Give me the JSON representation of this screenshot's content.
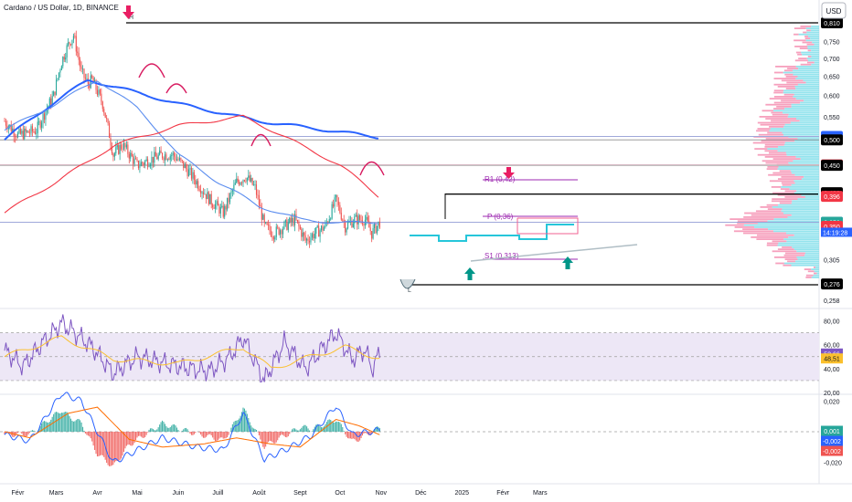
{
  "header": {
    "symbol_title": "Cardano / US Dollar, 1D, BINANCE",
    "currency": "USD"
  },
  "colors": {
    "candle_up": "#26a69a",
    "candle_down": "#ef5350",
    "ma_fast": "#2962ff",
    "ma_mid": "#5b8def",
    "ma_slow": "#f23645",
    "level_line": "#000000",
    "teal_pivot": "#26c6da",
    "pivot_pink": "#d81b60",
    "arrow_red": "#e91e63",
    "arrow_teal": "#009688",
    "rsi_line": "#7e57c2",
    "rsi_ma": "#fbc02d",
    "rsi_band_fill": "#ede7f6",
    "macd_line": "#2962ff",
    "signal_line": "#ff6d00",
    "vp_teal": "#80deea",
    "vp_pink": "#f48fb1"
  },
  "chart_data": [
    {
      "type": "candlestick",
      "title": "Cardano / US Dollar, 1D, BINANCE",
      "x_labels": [
        "Févr",
        "Mars",
        "Avr",
        "Mai",
        "Juin",
        "Juill",
        "Août",
        "Sept",
        "Oct",
        "Nov",
        "Déc",
        "2025",
        "Févr",
        "Mars"
      ],
      "y_axis_ticks": [
        "0,750",
        "0,700",
        "0,650",
        "0,600",
        "0,550",
        "0,500",
        "0,450",
        "0,400",
        "0,350",
        "0,305",
        "0,258"
      ],
      "ylim": [
        0.258,
        0.81
      ],
      "scale": "log",
      "price_levels": [
        0.81,
        0.507,
        0.5,
        0.451,
        0.45,
        0.402,
        0.396,
        0.356,
        0.356,
        0.35,
        0.276
      ],
      "price_level_labels": [
        "0,810",
        "0,507",
        "0,500",
        "0,451",
        "0,450",
        "0,402",
        "0,396",
        "0,356",
        "0,356",
        "0,350",
        "0,276"
      ],
      "countdown_label": "14:19:28",
      "annotations": {
        "pivot_r1": "R1 (0,42)",
        "pivot_p": "P (0,36)",
        "pivot_s1": "S1 (0,313)",
        "high_marker": "H",
        "low_marker": "L"
      },
      "series": [
        {
          "name": "",
          "kind": "close_path",
          "x": [
            "2024-01-22",
            "2024-02-01",
            "2024-02-15",
            "2024-02-28",
            "2024-03-05",
            "2024-03-10",
            "2024-03-14",
            "2024-03-20",
            "2024-03-25",
            "2024-03-28",
            "2024-04-05",
            "2024-04-13",
            "2024-04-20",
            "2024-05-01",
            "2024-05-10",
            "2024-05-20",
            "2024-05-28",
            "2024-06-05",
            "2024-06-15",
            "2024-06-25",
            "2024-07-05",
            "2024-07-15",
            "2024-07-22",
            "2024-07-29",
            "2024-08-05",
            "2024-08-12",
            "2024-08-20",
            "2024-08-28",
            "2024-09-05",
            "2024-09-12",
            "2024-09-20",
            "2024-09-28",
            "2024-10-05",
            "2024-10-12",
            "2024-10-20",
            "2024-10-25",
            "2024-10-31"
          ],
          "values": [
            0.54,
            0.51,
            0.52,
            0.6,
            0.69,
            0.74,
            0.77,
            0.66,
            0.63,
            0.64,
            0.58,
            0.47,
            0.49,
            0.45,
            0.46,
            0.47,
            0.47,
            0.45,
            0.42,
            0.39,
            0.37,
            0.42,
            0.43,
            0.41,
            0.35,
            0.34,
            0.35,
            0.36,
            0.33,
            0.34,
            0.35,
            0.39,
            0.35,
            0.36,
            0.36,
            0.34,
            0.356
          ]
        },
        {
          "name": "",
          "kind": "ma",
          "x": [
            "2024-01-22",
            "2024-03-25",
            "2024-06-01",
            "2024-08-01",
            "2024-10-31"
          ],
          "values": [
            0.5,
            0.64,
            0.58,
            0.54,
            0.505
          ]
        },
        {
          "name": "",
          "kind": "ma",
          "x": [
            "2024-01-22",
            "2024-03-01",
            "2024-04-01",
            "2024-05-01",
            "2024-06-01",
            "2024-07-01",
            "2024-08-01",
            "2024-09-01",
            "2024-10-01",
            "2024-10-31"
          ],
          "values": [
            0.52,
            0.58,
            0.64,
            0.57,
            0.47,
            0.42,
            0.38,
            0.36,
            0.355,
            0.356
          ]
        },
        {
          "name": "",
          "kind": "ma",
          "x": [
            "2024-01-22",
            "2024-03-01",
            "2024-04-15",
            "2024-06-01",
            "2024-07-20",
            "2024-09-01",
            "2024-10-01",
            "2024-10-31"
          ],
          "values": [
            0.37,
            0.42,
            0.49,
            0.53,
            0.55,
            0.49,
            0.45,
            0.395
          ]
        }
      ]
    },
    {
      "type": "line",
      "title": "",
      "y_axis_ticks": [
        "80,00",
        "60,00",
        "40,00",
        "20,00"
      ],
      "ylim": [
        20,
        85
      ],
      "band": [
        30,
        70
      ],
      "value_labels": [
        "52,66",
        "48,51"
      ],
      "series": [
        {
          "name": "",
          "kind": "rsi",
          "x": [
            "2024-01-22",
            "2024-02-05",
            "2024-02-20",
            "2024-03-05",
            "2024-03-15",
            "2024-03-28",
            "2024-04-13",
            "2024-05-01",
            "2024-05-20",
            "2024-06-10",
            "2024-06-25",
            "2024-07-10",
            "2024-07-20",
            "2024-08-05",
            "2024-08-20",
            "2024-09-05",
            "2024-09-20",
            "2024-09-28",
            "2024-10-10",
            "2024-10-20",
            "2024-10-25",
            "2024-10-31"
          ],
          "values": [
            55,
            42,
            62,
            78,
            70,
            58,
            36,
            50,
            45,
            40,
            38,
            50,
            66,
            30,
            62,
            40,
            60,
            70,
            48,
            56,
            40,
            52.66
          ]
        },
        {
          "name": "",
          "kind": "rsi_ma",
          "x": [
            "2024-01-22",
            "2024-03-05",
            "2024-04-13",
            "2024-06-01",
            "2024-07-20",
            "2024-08-10",
            "2024-09-15",
            "2024-10-05",
            "2024-10-31"
          ],
          "values": [
            50,
            66,
            48,
            44,
            58,
            40,
            52,
            58,
            48.51
          ]
        }
      ]
    },
    {
      "type": "line",
      "title": "",
      "y_axis_ticks": [
        "0,020",
        "0,000",
        "-0,020"
      ],
      "ylim": [
        -0.025,
        0.022
      ],
      "value_labels": [
        "0,001",
        "-0,002",
        "-0,002"
      ],
      "series": [
        {
          "name": "",
          "kind": "macd",
          "x": [
            "2024-01-22",
            "2024-02-10",
            "2024-03-05",
            "2024-03-20",
            "2024-04-13",
            "2024-05-01",
            "2024-05-20",
            "2024-06-15",
            "2024-07-05",
            "2024-07-20",
            "2024-08-05",
            "2024-08-25",
            "2024-09-10",
            "2024-09-28",
            "2024-10-10",
            "2024-10-31"
          ],
          "values": [
            -0.002,
            -0.006,
            0.025,
            0.02,
            -0.02,
            -0.012,
            -0.004,
            -0.01,
            -0.012,
            0.012,
            -0.018,
            -0.01,
            -0.002,
            0.017,
            -0.002,
            0.001
          ]
        },
        {
          "name": "",
          "kind": "signal",
          "x": [
            "2024-01-22",
            "2024-02-10",
            "2024-03-10",
            "2024-04-01",
            "2024-04-25",
            "2024-05-20",
            "2024-06-20",
            "2024-07-15",
            "2024-08-10",
            "2024-09-01",
            "2024-09-28",
            "2024-10-15",
            "2024-10-31"
          ],
          "values": [
            0,
            -0.004,
            0.012,
            0.016,
            -0.005,
            -0.01,
            -0.008,
            -0.004,
            -0.008,
            -0.01,
            0.008,
            0.004,
            -0.002
          ]
        }
      ]
    }
  ]
}
